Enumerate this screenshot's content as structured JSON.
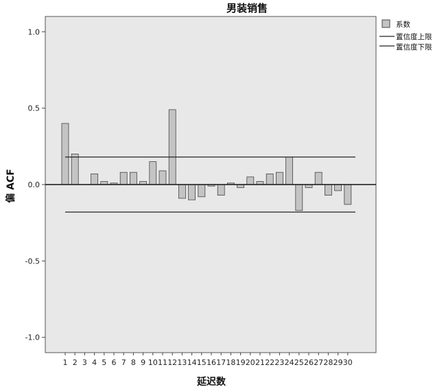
{
  "chart_data": {
    "type": "bar",
    "title": "男装销售",
    "xlabel": "延迟数",
    "ylabel": "偏 ACF",
    "categories": [
      "1",
      "2",
      "3",
      "4",
      "5",
      "6",
      "7",
      "8",
      "9",
      "10",
      "11",
      "12",
      "13",
      "14",
      "15",
      "16",
      "17",
      "18",
      "19",
      "20",
      "21",
      "22",
      "23",
      "24",
      "25",
      "26",
      "27",
      "28",
      "29",
      "30"
    ],
    "series": [
      {
        "name": "系数",
        "values": [
          0.4,
          0.2,
          0.0,
          0.07,
          0.02,
          0.01,
          0.08,
          0.08,
          0.02,
          0.15,
          0.09,
          0.49,
          -0.09,
          -0.1,
          -0.08,
          -0.01,
          -0.07,
          0.01,
          -0.02,
          0.05,
          0.02,
          0.07,
          0.08,
          0.18,
          -0.17,
          -0.02,
          0.08,
          -0.07,
          -0.04,
          -0.13
        ]
      }
    ],
    "confidence": {
      "upper_label": "置信度上限",
      "lower_label": "置信度下限",
      "upper": 0.18,
      "lower": -0.18
    },
    "yticks": [
      "1.0",
      "0.5",
      "0.0",
      "-0.5",
      "-1.0"
    ],
    "ytick_values": [
      1.0,
      0.5,
      0.0,
      -0.5,
      -1.0
    ],
    "ylim": [
      -1.1,
      1.1
    ],
    "grid": false,
    "legend_position": "top-right",
    "colors": {
      "plot_bg": "#e8e8e8",
      "bar_fill": "#c4c4c4",
      "bar_stroke": "#444444",
      "line": "#222222"
    }
  }
}
